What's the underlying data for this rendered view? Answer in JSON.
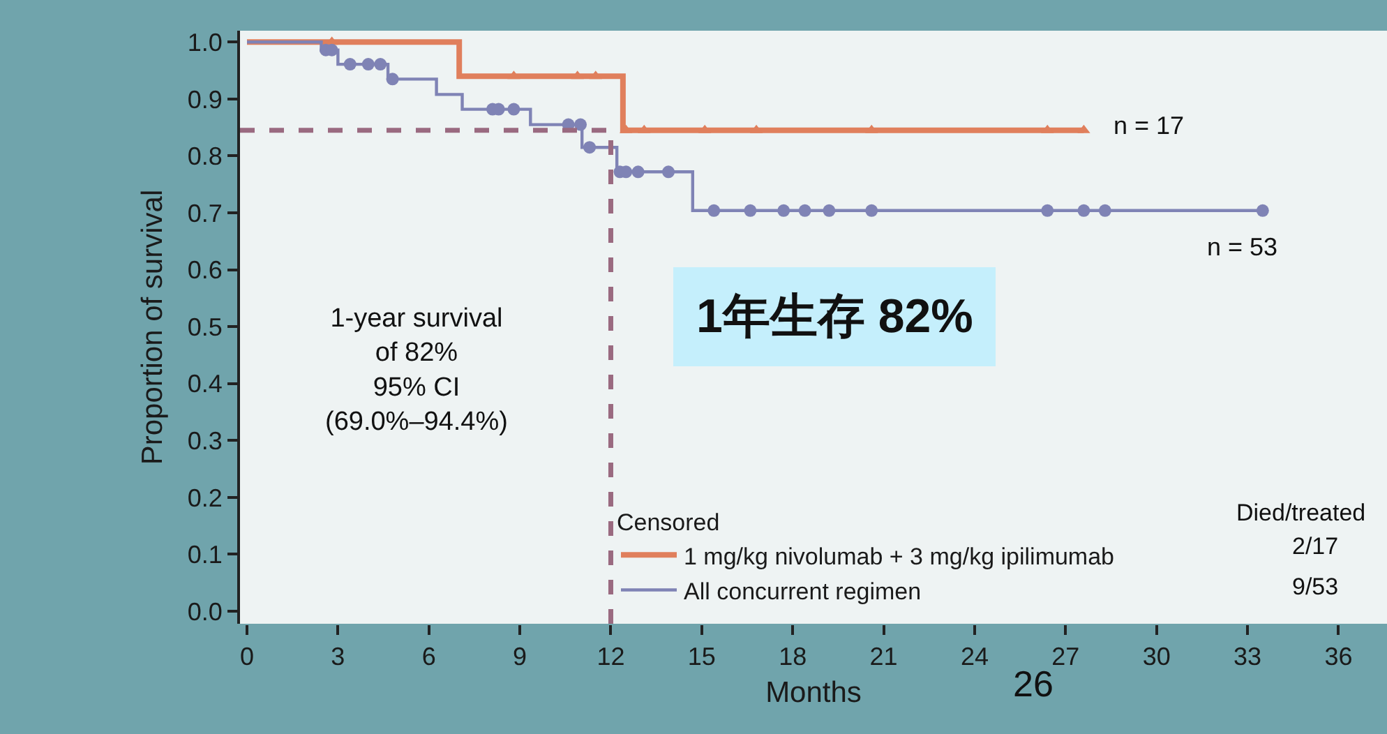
{
  "chart_data": {
    "type": "step",
    "xlabel": "Months",
    "ylabel": "Proportion of survival",
    "legend_title": "Censored",
    "xlim": [
      -0.23,
      37.6
    ],
    "ylim": [
      -0.022,
      1.02
    ],
    "xticks": [
      0,
      3,
      6,
      9,
      12,
      15,
      18,
      21,
      24,
      27,
      30,
      33,
      36
    ],
    "yticks": [
      {
        "value": 0,
        "label": "0.0"
      },
      {
        "value": 0.1,
        "label": "0.1"
      },
      {
        "value": 0.2,
        "label": "0.2"
      },
      {
        "value": 0.3,
        "label": "0.3"
      },
      {
        "value": 0.4,
        "label": "0.4"
      },
      {
        "value": 0.5,
        "label": "0.5"
      },
      {
        "value": 0.6,
        "label": "0.6"
      },
      {
        "value": 0.7,
        "label": "0.7"
      },
      {
        "value": 0.8,
        "label": "0.8"
      },
      {
        "value": 0.9,
        "label": "0.9"
      },
      {
        "value": 1,
        "label": "1.0"
      }
    ],
    "legend": "bottom right",
    "series": [
      {
        "name": "1 mg/kg nivolumab + 3 mg/kg ipilimumab",
        "color": "#e07f5c",
        "marker": "none",
        "x": [
          0,
          7.0,
          12.4,
          27.6
        ],
        "values": [
          1.0,
          0.94,
          0.845,
          0.845
        ]
      },
      {
        "name": "All concurrent regimen",
        "color": "#7f83b5",
        "marker": "none",
        "x": [
          0,
          2.45,
          3.0,
          4.65,
          6.25,
          7.1,
          9.35,
          11.05,
          12.2,
          14.7,
          33.5
        ],
        "values": [
          1.0,
          0.986,
          0.961,
          0.935,
          0.908,
          0.882,
          0.855,
          0.815,
          0.772,
          0.704,
          0.704
        ]
      },
      {
        "color": "#e07f5c",
        "type": "scatter",
        "marker": "triangle",
        "x": [
          2.8,
          8.8,
          10.9,
          11.5,
          12.5,
          13.1,
          15.1,
          16.8,
          20.6,
          26.4,
          27.6
        ],
        "values": [
          1.0,
          0.94,
          0.94,
          0.94,
          0.845,
          0.845,
          0.845,
          0.845,
          0.845,
          0.845,
          0.845
        ]
      },
      {
        "color": "#7f83b5",
        "type": "scatter",
        "marker": "circle",
        "x": [
          2.6,
          2.8,
          3.4,
          4.0,
          4.4,
          4.8,
          8.1,
          8.3,
          8.8,
          10.6,
          11.0,
          11.3,
          12.3,
          12.5,
          12.9,
          13.9,
          15.4,
          16.6,
          17.7,
          18.4,
          19.2,
          20.6,
          26.4,
          27.6,
          28.3,
          33.5
        ],
        "values": [
          0.986,
          0.986,
          0.961,
          0.961,
          0.961,
          0.935,
          0.882,
          0.882,
          0.882,
          0.855,
          0.855,
          0.815,
          0.772,
          0.772,
          0.772,
          0.772,
          0.704,
          0.704,
          0.704,
          0.704,
          0.704,
          0.704,
          0.704,
          0.704,
          0.704,
          0.704
        ]
      }
    ],
    "ref_lines": [
      {
        "axis": "y",
        "value": 0.845,
        "color": "#9a6a80",
        "line_style": "dashed"
      },
      {
        "axis": "x",
        "value": 12,
        "color": "#9a6a80",
        "line_style": "dashed"
      }
    ],
    "annotations": [
      "1-year survival\nof 82%\n95% CI\n(69.0%–94.4%)",
      "1年生存 82%",
      "Died/treated",
      "2/17",
      "9/53",
      "26",
      "n = 17",
      "n = 53"
    ]
  }
}
